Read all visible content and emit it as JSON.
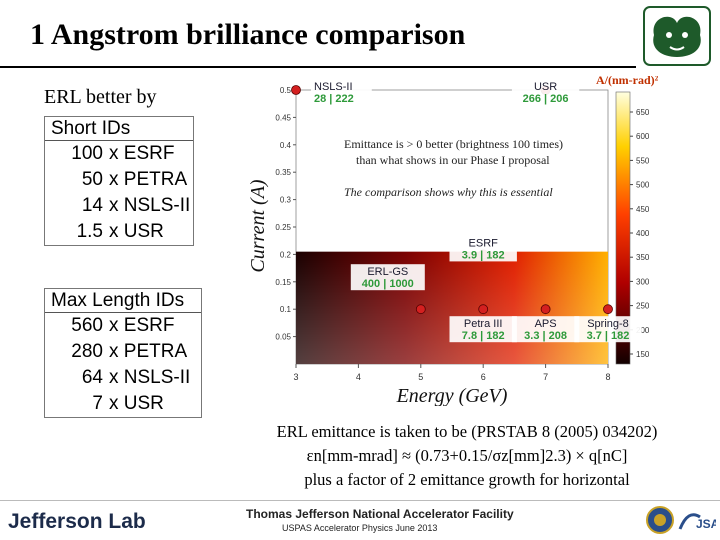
{
  "slide": {
    "title": "1 Angstrom brilliance comparison",
    "subhead": "ERL better by"
  },
  "short_ids": {
    "header": "Short IDs",
    "rows": [
      {
        "factor": "100",
        "label": "x ESRF"
      },
      {
        "factor": "50",
        "label": "x PETRA"
      },
      {
        "factor": "14",
        "label": "x NSLS-II"
      },
      {
        "factor": "1.5",
        "label": "x USR"
      }
    ]
  },
  "max_ids": {
    "header": "Max Length IDs",
    "rows": [
      {
        "factor": "560",
        "label": "x ESRF"
      },
      {
        "factor": "280",
        "label": "x PETRA"
      },
      {
        "factor": "64",
        "label": "x NSLS-II"
      },
      {
        "factor": "7",
        "label": "x USR"
      }
    ]
  },
  "chart_data": {
    "type": "heatmap",
    "xlabel": "Energy (GeV)",
    "ylabel": "Current (A)",
    "xlim": [
      3,
      8
    ],
    "ylim": [
      0,
      0.5
    ],
    "xticks": [
      "3",
      "4",
      "5",
      "6",
      "7",
      "8"
    ],
    "yticks": [
      "0.05",
      "0.1",
      "0.15",
      "0.2",
      "0.25",
      "0.3",
      "0.35",
      "0.4",
      "0.45",
      "0.5"
    ],
    "colorbar": {
      "label": "A/(nm-rad)²",
      "range": [
        150,
        650
      ],
      "ticks": [
        "650",
        "600",
        "550",
        "500",
        "450",
        "400",
        "350",
        "300",
        "250",
        "200",
        "150"
      ]
    },
    "annotations": [
      "Emittance is > 0 better (brightness 100 times)",
      "than what shows in our Phase I proposal",
      "The comparison shows why this is essential"
    ],
    "facilities": [
      {
        "name": "NSLS-II",
        "values": "28 | 222",
        "energy": 3.0,
        "current": 0.5,
        "value_color": "#2e9a3a"
      },
      {
        "name": "USR",
        "values": "266 | 206",
        "energy": 7.0,
        "current": 0.5,
        "value_color": "#2e9a3a"
      },
      {
        "name": "ESRF",
        "values": "3.9 | 182",
        "energy": 6.0,
        "current": 0.2,
        "value_color": "#2e9a3a"
      },
      {
        "name": "ERL-GS",
        "values": "400 | 1000",
        "energy": 5.0,
        "current": 0.1,
        "value_color": "#2e9a3a"
      },
      {
        "name": "Petra III",
        "values": "7.8 | 182",
        "energy": 6.0,
        "current": 0.1,
        "value_color": "#2e9a3a"
      },
      {
        "name": "APS",
        "values": "3.3 | 208",
        "energy": 7.0,
        "current": 0.1,
        "value_color": "#2e9a3a"
      },
      {
        "name": "Spring-8",
        "values": "3.7 | 182",
        "energy": 8.0,
        "current": 0.1,
        "value_color": "#2e9a3a"
      }
    ]
  },
  "note": {
    "line1": "ERL emittance is taken to be (PRSTAB 8 (2005) 034202)",
    "line2": "εn[mm-mrad] ≈ (0.73+0.15/σz[mm]2.3) × q[nC]",
    "line3": "plus a factor of 2 emittance growth for horizontal"
  },
  "footer": {
    "lab": "Jefferson Lab",
    "facility": "Thomas Jefferson National Accelerator Facility",
    "course": "USPAS Accelerator Physics June 2013"
  }
}
